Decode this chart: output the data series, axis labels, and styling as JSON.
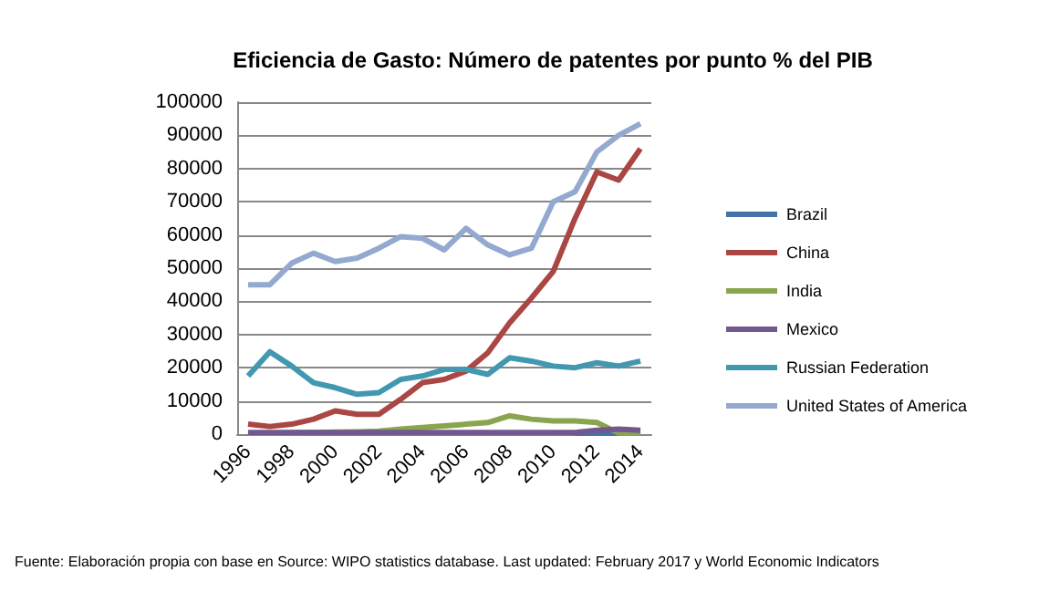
{
  "chart_data": {
    "type": "line",
    "title": "Eficiencia de Gasto: Número de patentes por punto % del PIB",
    "categories": [
      "1996",
      null,
      "1998",
      null,
      "2000",
      null,
      "2002",
      null,
      "2004",
      null,
      "2006",
      null,
      "2008",
      null,
      "2010",
      null,
      "2012",
      null,
      "2014"
    ],
    "series": [
      {
        "name": "Brazil",
        "color": "#4572a7",
        "values": [
          null,
          null,
          null,
          null,
          null,
          null,
          null,
          null,
          null,
          null,
          null,
          null,
          null,
          null,
          null,
          300,
          300,
          300,
          300
        ]
      },
      {
        "name": "China",
        "color": "#aa4643",
        "values": [
          3000,
          2300,
          3000,
          4500,
          7000,
          6000,
          6000,
          10500,
          15500,
          16500,
          19000,
          24500,
          33500,
          41000,
          49000,
          65000,
          79000,
          76500,
          86000
        ]
      },
      {
        "name": "India",
        "color": "#89a54e",
        "values": [
          300,
          300,
          400,
          500,
          600,
          700,
          900,
          1500,
          2000,
          2500,
          3000,
          3500,
          5500,
          4500,
          4000,
          4000,
          3500,
          300,
          300
        ]
      },
      {
        "name": "Mexico",
        "color": "#71588f",
        "values": [
          500,
          500,
          500,
          500,
          500,
          500,
          500,
          500,
          500,
          500,
          500,
          500,
          500,
          500,
          500,
          500,
          1200,
          1500,
          1200
        ]
      },
      {
        "name": "Russian Federation",
        "color": "#4198af",
        "values": [
          17500,
          24800,
          20500,
          15500,
          14000,
          12000,
          12500,
          16500,
          17500,
          19500,
          19500,
          18000,
          23000,
          22000,
          20500,
          20000,
          21500,
          20500,
          22000
        ]
      },
      {
        "name": "United States of America",
        "color": "#93a9cf",
        "values": [
          45000,
          45000,
          51500,
          54500,
          52000,
          53000,
          56000,
          59500,
          59000,
          55500,
          62000,
          57000,
          54000,
          56000,
          70000,
          73000,
          85000,
          90000,
          93500
        ]
      }
    ],
    "ylim": [
      0,
      100000
    ],
    "yticks": [
      0,
      10000,
      20000,
      30000,
      40000,
      50000,
      60000,
      70000,
      80000,
      90000,
      100000
    ],
    "grid": "y",
    "legend": "right",
    "marker": "none",
    "line_style": "solid",
    "annotations": [
      "Fuente: Elaboración propia con base en Source: WIPO statistics database. Last updated: February 2017 y World Economic Indicators"
    ]
  }
}
